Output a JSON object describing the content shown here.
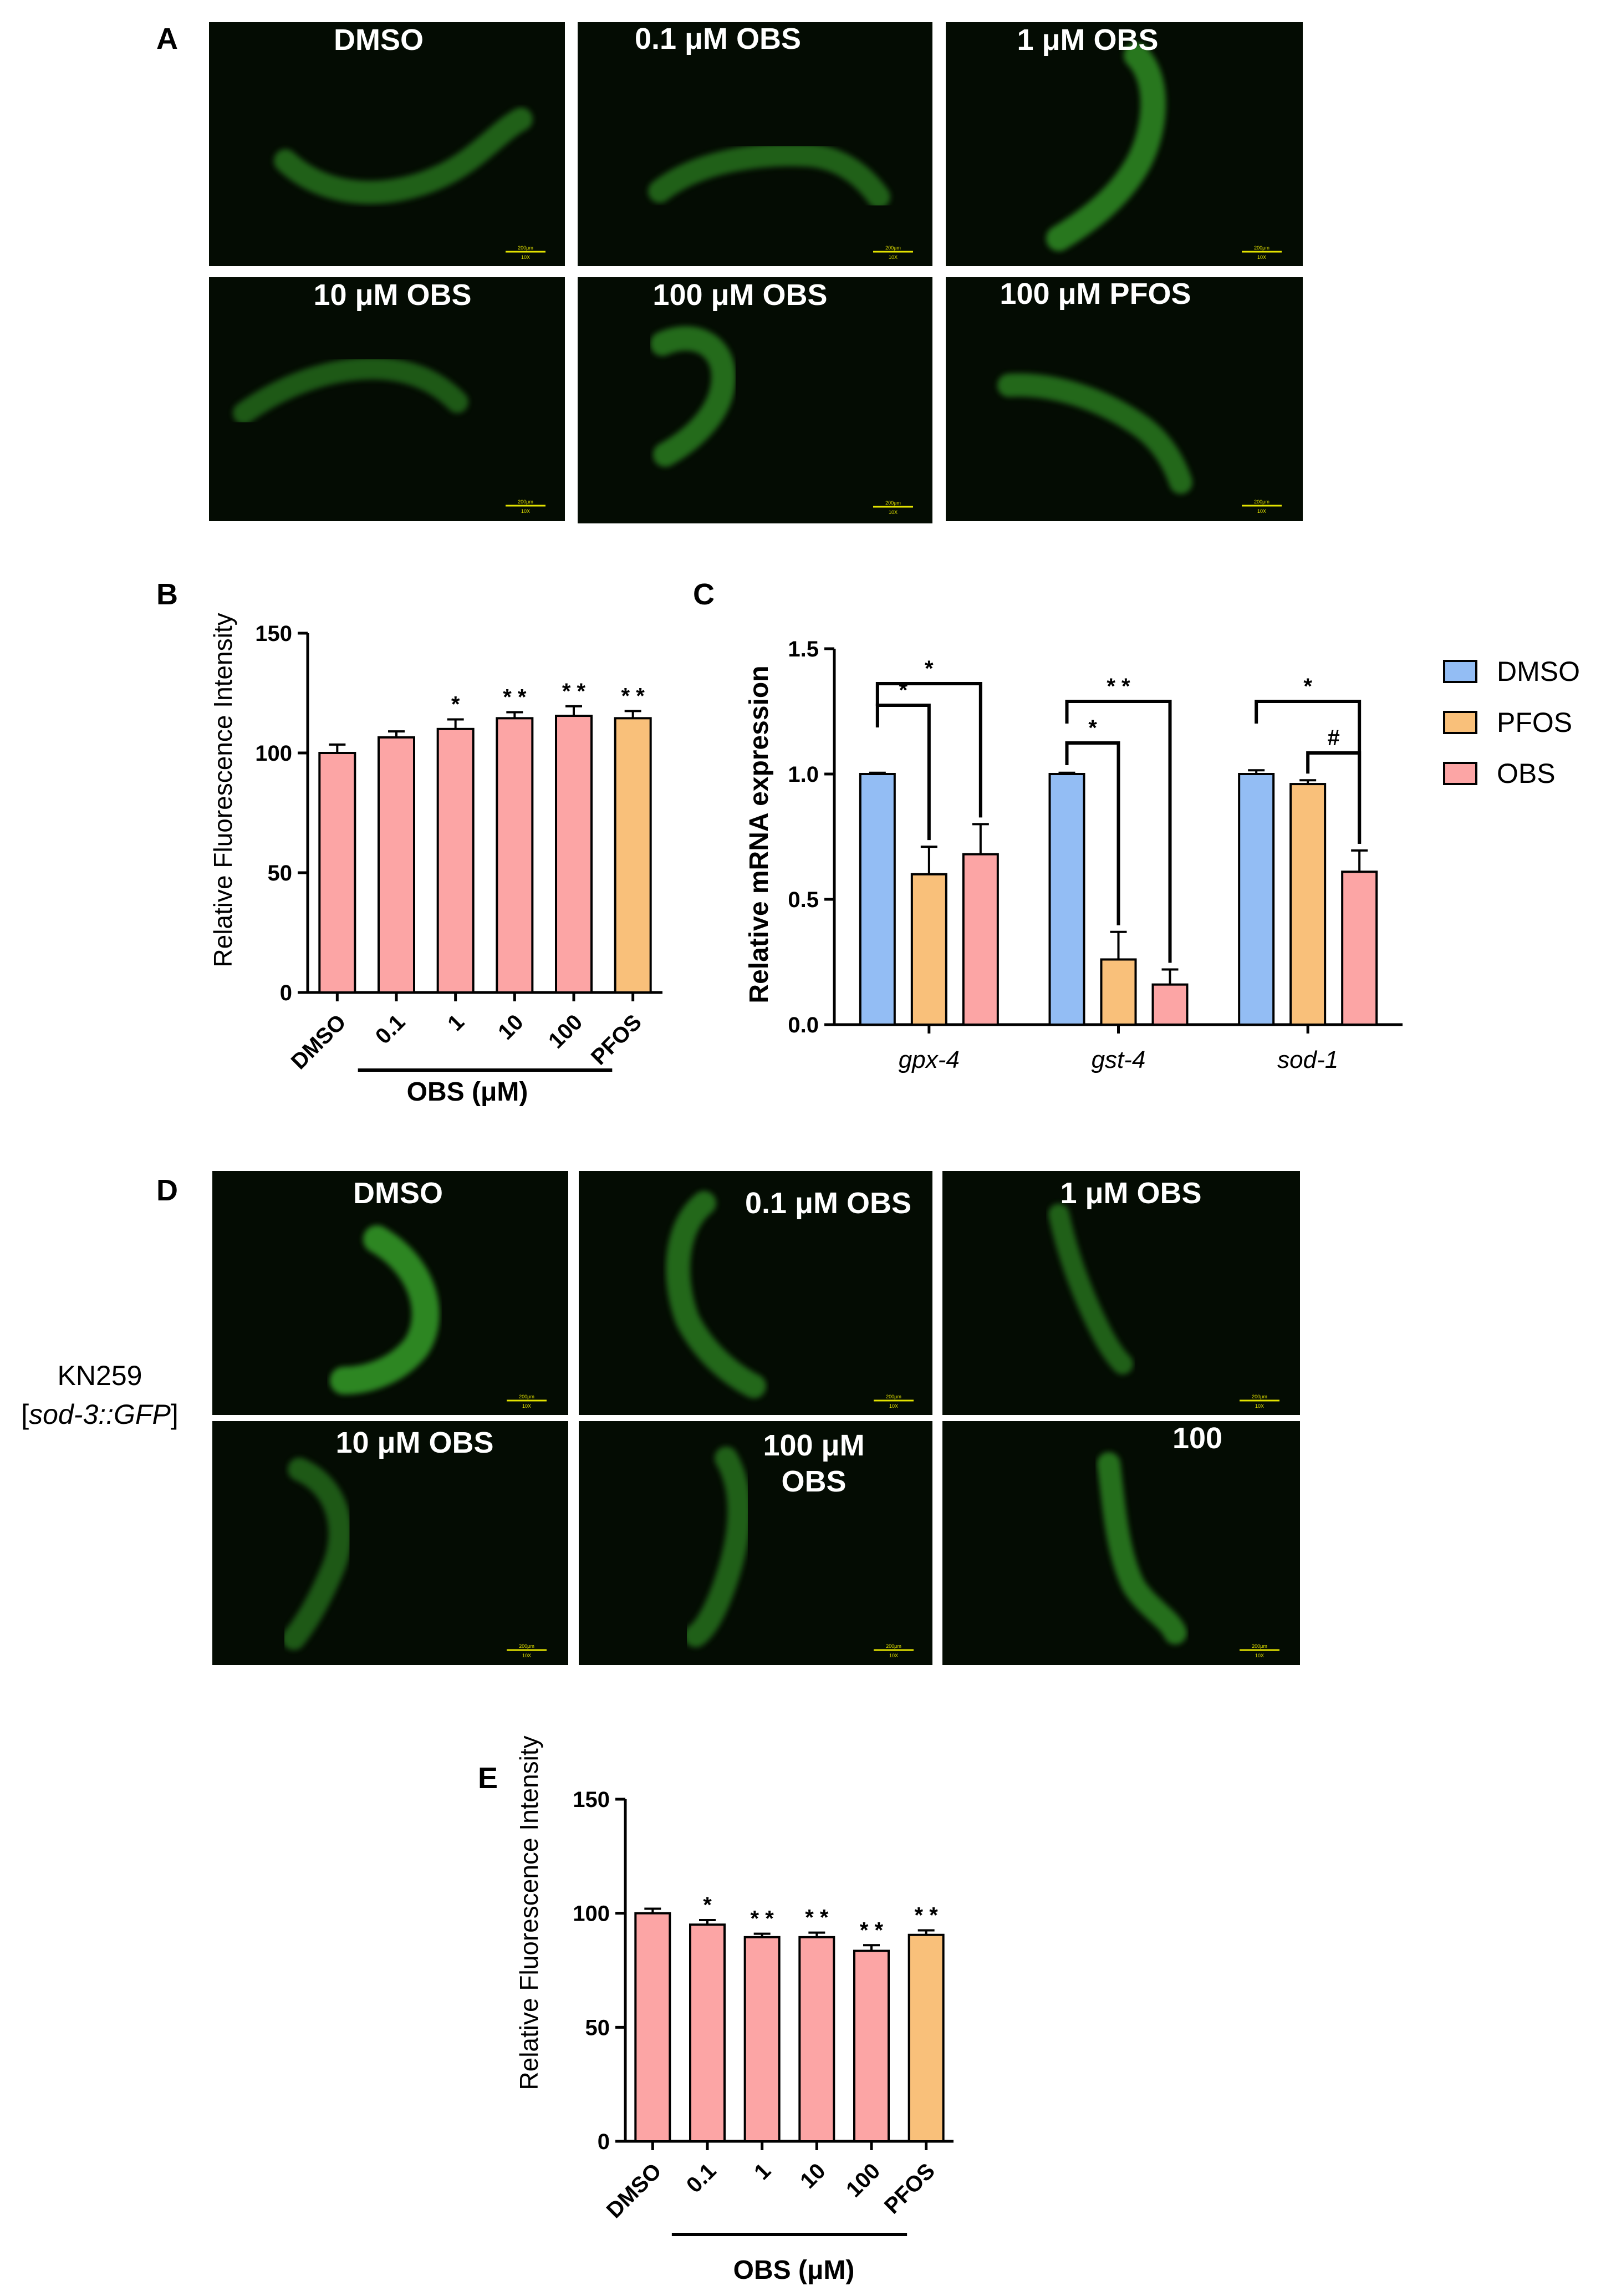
{
  "labels": {
    "A": "A",
    "B": "B",
    "C": "C",
    "D": "D",
    "E": "E"
  },
  "colors": {
    "micro_bg": "#040c03",
    "worm": "#39a52a",
    "bar_obs": "#fca5a5",
    "bar_pfos": "#f9c07a",
    "bar_dmso": "#93bdf4",
    "scale_bar": "#e3e300"
  },
  "scale_bar": {
    "length": "200μm",
    "mag": "10X"
  },
  "panel_a": {
    "titles": [
      "DMSO",
      "0.1 μM OBS",
      "1 μM OBS",
      "10 μM OBS",
      "100 μM OBS",
      "100 μM PFOS"
    ],
    "worm_icon": "nematode-worm"
  },
  "panel_d": {
    "strain": "KN259",
    "genotype": "sod-3::GFP",
    "titles": [
      "DMSO",
      "0.1 μM OBS",
      "1 μM OBS",
      "10 μM OBS",
      "100 μM",
      "OBS",
      "100"
    ],
    "worm_icon": "nematode-worm"
  },
  "chart_data": [
    {
      "id": "B",
      "type": "bar",
      "categories": [
        "DMSO",
        "0.1",
        "1",
        "10",
        "100",
        "PFOS"
      ],
      "values": [
        100,
        106.5,
        110,
        114.5,
        115.5,
        114.5
      ],
      "errors": [
        3.5,
        2.5,
        4,
        2.5,
        4,
        3
      ],
      "significance": [
        "",
        "",
        "*",
        "* *",
        "* *",
        "* *"
      ],
      "ylabel": "Relative Fluorescence Intensity",
      "group_label": "OBS (μM)",
      "ylim": [
        0,
        150
      ],
      "yticks": [
        "0",
        "50",
        "100",
        "150"
      ],
      "bar_colors": [
        "obs",
        "obs",
        "obs",
        "obs",
        "obs",
        "pfos"
      ]
    },
    {
      "id": "C",
      "type": "bar",
      "categories": [
        "gpx-4",
        "gst-4",
        "sod-1"
      ],
      "series": [
        {
          "name": "DMSO",
          "values": [
            1.0,
            1.0,
            1.0
          ],
          "errors": [
            0.005,
            0.005,
            0.015
          ]
        },
        {
          "name": "PFOS",
          "values": [
            0.6,
            0.26,
            0.96
          ],
          "errors": [
            0.11,
            0.11,
            0.015
          ]
        },
        {
          "name": "OBS",
          "values": [
            0.68,
            0.16,
            0.61
          ],
          "errors": [
            0.12,
            0.06,
            0.085
          ]
        }
      ],
      "ylabel": "Relative mRNA expression",
      "ylim": [
        0,
        1.5
      ],
      "yticks": [
        "0.0",
        "0.5",
        "1.0",
        "1.5"
      ],
      "brackets": [
        {
          "group": 0,
          "from": 0,
          "to": 1,
          "label": "*"
        },
        {
          "group": 0,
          "from": 0,
          "to": 2,
          "label": "*"
        },
        {
          "group": 1,
          "from": 0,
          "to": 1,
          "label": "*"
        },
        {
          "group": 1,
          "from": 0,
          "to": 2,
          "label": "* *"
        },
        {
          "group": 2,
          "from": 1,
          "to": 2,
          "label": "#"
        },
        {
          "group": 2,
          "from": 0,
          "to": 2,
          "label": "*"
        }
      ],
      "legend": [
        "DMSO",
        "PFOS",
        "OBS"
      ],
      "legend_position": "right"
    },
    {
      "id": "E",
      "type": "bar",
      "categories": [
        "DMSO",
        "0.1",
        "1",
        "10",
        "100",
        "PFOS"
      ],
      "values": [
        100,
        95,
        89.5,
        89.5,
        83.5,
        90.5
      ],
      "errors": [
        2,
        2,
        1.5,
        2,
        2.5,
        2
      ],
      "significance": [
        "",
        "*",
        "* *",
        "* *",
        "* *",
        "* *"
      ],
      "ylabel": "Relative Fluorescence Intensity",
      "group_label": "OBS (μM)",
      "ylim": [
        0,
        150
      ],
      "yticks": [
        "0",
        "50",
        "100",
        "150"
      ],
      "bar_colors": [
        "obs",
        "obs",
        "obs",
        "obs",
        "obs",
        "pfos"
      ]
    }
  ]
}
